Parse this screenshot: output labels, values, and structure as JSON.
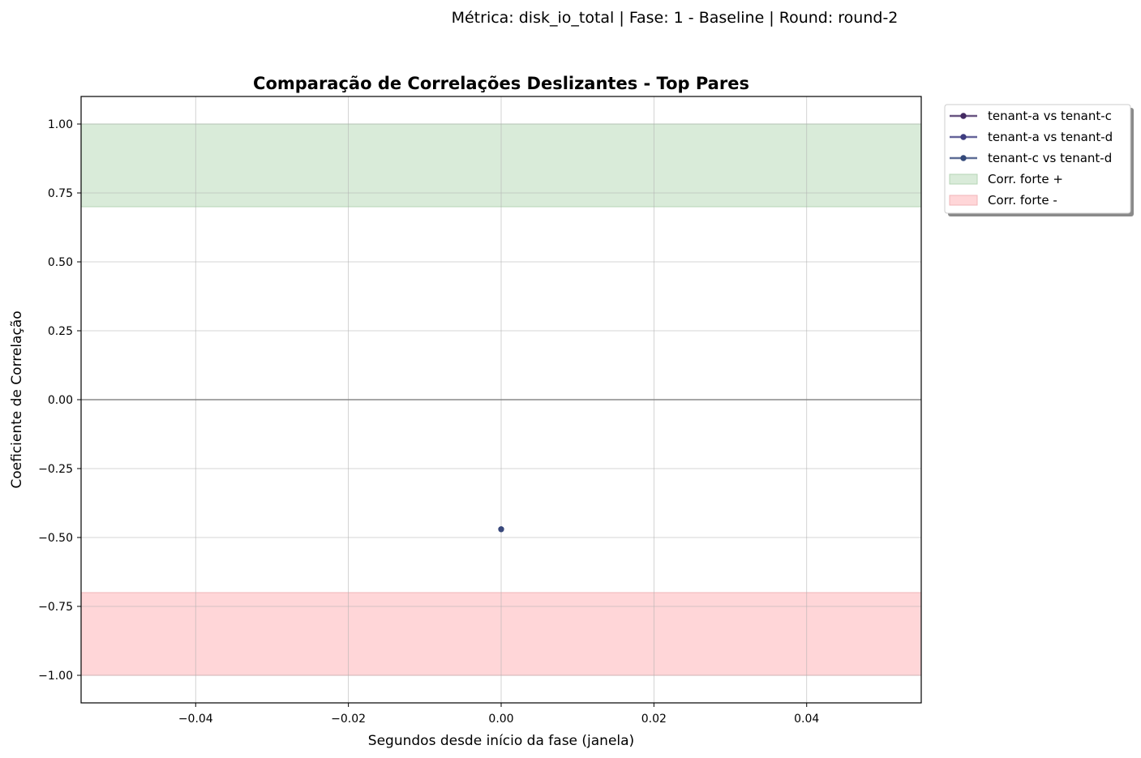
{
  "chart_data": {
    "type": "line",
    "suptitle": "Métrica: disk_io_total | Fase: 1 - Baseline | Round: round-2",
    "title": "Comparação de Correlações Deslizantes - Top Pares",
    "xlabel": "Segundos desde início da fase (janela)",
    "ylabel": "Coeficiente de Correlação",
    "xlim": [
      -0.055,
      0.055
    ],
    "ylim": [
      -1.1,
      1.1
    ],
    "x_ticks": [
      -0.04,
      -0.02,
      0.0,
      0.02,
      0.04
    ],
    "x_tick_labels": [
      "−0.04",
      "−0.02",
      "0.00",
      "0.02",
      "0.04"
    ],
    "y_ticks": [
      1.0,
      0.75,
      0.5,
      0.25,
      0.0,
      -0.25,
      -0.5,
      -0.75,
      -1.0
    ],
    "y_tick_labels": [
      "1.00",
      "0.75",
      "0.50",
      "0.25",
      "0.00",
      "−0.25",
      "−0.50",
      "−0.75",
      "−1.00"
    ],
    "grid": true,
    "legend_position": "outside-top-right",
    "series": [
      {
        "name": "tenant-a vs tenant-c",
        "color": "#442a62",
        "x": [
          0.0
        ],
        "y": [
          -0.47
        ]
      },
      {
        "name": "tenant-a vs tenant-d",
        "color": "#3f3d80",
        "x": [
          0.0
        ],
        "y": [
          -0.47
        ]
      },
      {
        "name": "tenant-c vs tenant-d",
        "color": "#34497a",
        "x": [
          0.0
        ],
        "y": [
          -0.47
        ]
      }
    ],
    "bands": [
      {
        "name": "Corr. forte +",
        "y0": 0.7,
        "y1": 1.0,
        "color": "#d9ebd9"
      },
      {
        "name": "Corr. forte -",
        "y0": -1.0,
        "y1": -0.7,
        "color": "#ffd6d8"
      }
    ],
    "reference_line": {
      "y": 0.0,
      "color": "#888888"
    }
  }
}
